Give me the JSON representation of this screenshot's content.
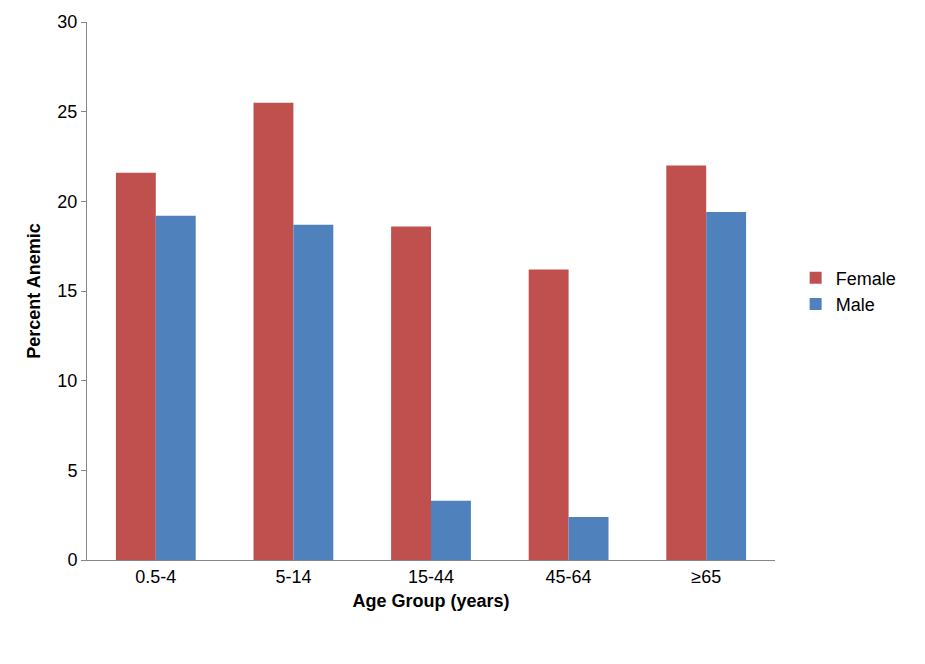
{
  "chart_data": {
    "type": "bar",
    "x_label": "Age Group (years)",
    "y_label": "Percent Anemic",
    "categories": [
      "0.5-4",
      "5-14",
      "15-44",
      "45-64",
      "≥65"
    ],
    "series": [
      {
        "name": "Female",
        "color": "#C0504D",
        "values": [
          21.6,
          25.5,
          18.6,
          16.2,
          22.0
        ]
      },
      {
        "name": "Male",
        "color": "#4F81BD",
        "values": [
          19.2,
          18.7,
          3.3,
          2.4,
          19.4
        ]
      }
    ],
    "ylim": [
      0,
      30
    ],
    "yticks": [
      0,
      5,
      10,
      15,
      20,
      25,
      30
    ],
    "grid": false,
    "legend": "right"
  }
}
